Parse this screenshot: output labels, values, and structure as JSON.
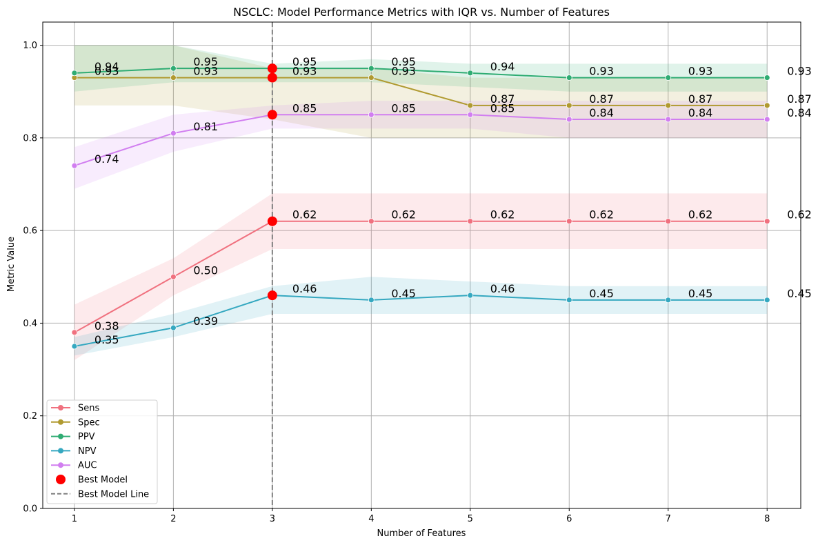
{
  "chart_data": {
    "type": "line",
    "title": "NSCLC: Model Performance Metrics with IQR vs. Number of Features",
    "xlabel": "Number of Features",
    "ylabel": "Metric Value",
    "x": [
      1,
      2,
      3,
      4,
      5,
      6,
      7,
      8
    ],
    "xlim": [
      0.68,
      8.34
    ],
    "ylim": [
      0.0,
      1.05
    ],
    "yticks": [
      0.0,
      0.2,
      0.4,
      0.6,
      0.8,
      1.0
    ],
    "ytick_labels": [
      "0.0",
      "0.2",
      "0.4",
      "0.6",
      "0.8",
      "1.0"
    ],
    "xtick_labels": [
      "1",
      "2",
      "3",
      "4",
      "5",
      "6",
      "7",
      "8"
    ],
    "grid": true,
    "legend_position": "lower-left",
    "series": [
      {
        "name": "Sens",
        "color": "#f0717f",
        "values": [
          0.38,
          0.5,
          0.62,
          0.62,
          0.62,
          0.62,
          0.62,
          0.62
        ],
        "labels": [
          "0.38",
          "0.50",
          "0.62",
          "0.62",
          "0.62",
          "0.62",
          "0.62",
          "0.62"
        ],
        "iqr_low": [
          0.32,
          0.46,
          0.56,
          0.56,
          0.56,
          0.56,
          0.56,
          0.56
        ],
        "iqr_high": [
          0.44,
          0.54,
          0.68,
          0.68,
          0.68,
          0.68,
          0.68,
          0.68
        ]
      },
      {
        "name": "Spec",
        "color": "#b09a30",
        "values": [
          0.93,
          0.93,
          0.93,
          0.93,
          0.87,
          0.87,
          0.87,
          0.87
        ],
        "labels": [
          "0.93",
          "0.93",
          "0.93",
          "0.93",
          "0.87",
          "0.87",
          "0.87",
          "0.87"
        ],
        "iqr_low": [
          0.87,
          0.87,
          0.84,
          0.8,
          0.8,
          0.8,
          0.8,
          0.8
        ],
        "iqr_high": [
          1.0,
          1.0,
          0.95,
          0.95,
          0.93,
          0.93,
          0.93,
          0.93
        ]
      },
      {
        "name": "PPV",
        "color": "#2fac73",
        "values": [
          0.94,
          0.95,
          0.95,
          0.95,
          0.94,
          0.93,
          0.93,
          0.93
        ],
        "labels": [
          "0.94",
          "0.95",
          "0.95",
          "0.95",
          "0.94",
          "0.93",
          "0.93",
          "0.93"
        ],
        "iqr_low": [
          0.9,
          0.92,
          0.92,
          0.92,
          0.91,
          0.9,
          0.9,
          0.9
        ],
        "iqr_high": [
          1.0,
          1.0,
          0.96,
          0.97,
          0.96,
          0.96,
          0.96,
          0.96
        ]
      },
      {
        "name": "NPV",
        "color": "#35a8c0",
        "values": [
          0.35,
          0.39,
          0.46,
          0.45,
          0.46,
          0.45,
          0.45,
          0.45
        ],
        "labels": [
          "0.35",
          "0.39",
          "0.46",
          "0.45",
          "0.46",
          "0.45",
          "0.45",
          "0.45"
        ],
        "iqr_low": [
          0.33,
          0.37,
          0.42,
          0.42,
          0.42,
          0.42,
          0.42,
          0.42
        ],
        "iqr_high": [
          0.37,
          0.42,
          0.48,
          0.5,
          0.49,
          0.48,
          0.48,
          0.48
        ]
      },
      {
        "name": "AUC",
        "color": "#d17ef0",
        "values": [
          0.74,
          0.81,
          0.85,
          0.85,
          0.85,
          0.84,
          0.84,
          0.84
        ],
        "labels": [
          "0.74",
          "0.81",
          "0.85",
          "0.85",
          "0.85",
          "0.84",
          "0.84",
          "0.84"
        ],
        "iqr_low": [
          0.69,
          0.77,
          0.82,
          0.82,
          0.82,
          0.8,
          0.8,
          0.8
        ],
        "iqr_high": [
          0.78,
          0.85,
          0.87,
          0.88,
          0.88,
          0.88,
          0.88,
          0.88
        ]
      }
    ],
    "best_model": {
      "x": 3,
      "label": "Best Model",
      "line_label": "Best Model Line",
      "color": "#ff0000",
      "line_color": "#808080",
      "points": [
        0.95,
        0.93,
        0.85,
        0.62,
        0.46
      ]
    }
  }
}
